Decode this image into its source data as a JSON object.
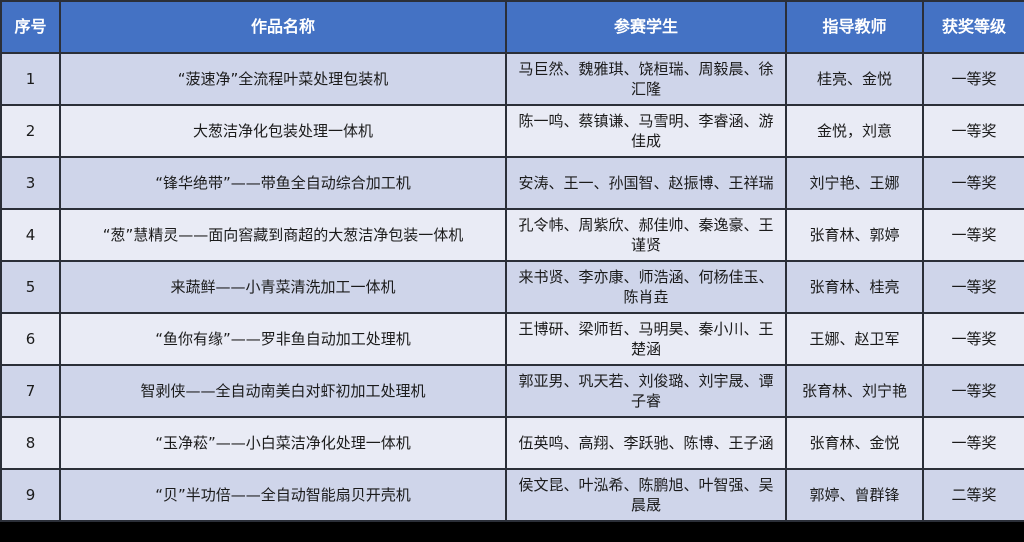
{
  "headers": [
    "序号",
    "作品名称",
    "参赛学生",
    "指导教师",
    "获奖等级"
  ],
  "colors": {
    "header": "#4472c4",
    "row_odd": "#cfd5ea",
    "row_even": "#e9ebf5"
  },
  "rows": [
    {
      "no": "1",
      "title": "“菠速净”全流程叶菜处理包装机",
      "students": "马巨然、魏雅琪、饶桓瑞、周毅晨、徐汇隆",
      "teachers": "桂亮、金悦",
      "award": "一等奖"
    },
    {
      "no": "2",
      "title": "大葱洁净化包装处理一体机",
      "students": "陈一鸣、蔡镇谦、马雪明、李睿涵、游佳成",
      "teachers": "金悦，刘意",
      "award": "一等奖"
    },
    {
      "no": "3",
      "title": "“锋华绝带”——带鱼全自动综合加工机",
      "students": "安涛、王一、孙国智、赵振博、王祥瑞",
      "teachers": "刘宁艳、王娜",
      "award": "一等奖"
    },
    {
      "no": "4",
      "title": "“葱”慧精灵——面向窖藏到商超的大葱洁净包装一体机",
      "students": "孔令帏、周紫欣、郝佳帅、秦逸豪、王谨贤",
      "teachers": "张育林、郭婷",
      "award": "一等奖"
    },
    {
      "no": "5",
      "title": "来蔬鲜——小青菜清洗加工一体机",
      "students": "来书贤、李亦康、师浩涵、何杨佳玉、陈肖垚",
      "teachers": "张育林、桂亮",
      "award": "一等奖"
    },
    {
      "no": "6",
      "title": "“鱼你有缘”——罗非鱼自动加工处理机",
      "students": "王博研、梁师哲、马明昊、秦小川、王楚涵",
      "teachers": "王娜、赵卫军",
      "award": "一等奖"
    },
    {
      "no": "7",
      "title": "智剥侠——全自动南美白对虾初加工处理机",
      "students": "郭亚男、巩天若、刘俊璐、刘宇晟、谭子睿",
      "teachers": "张育林、刘宁艳",
      "award": "一等奖"
    },
    {
      "no": "8",
      "title": "“玉净菘”——小白菜洁净化处理一体机",
      "students": "伍英鸣、高翔、李跃驰、陈博、王子涵",
      "teachers": "张育林、金悦",
      "award": "一等奖"
    },
    {
      "no": "9",
      "title": "“贝”半功倍——全自动智能扇贝开壳机",
      "students": "侯文昆、叶泓希、陈鹏旭、叶智强、吴晨晟",
      "teachers": "郭婷、曾群锋",
      "award": "二等奖"
    }
  ]
}
